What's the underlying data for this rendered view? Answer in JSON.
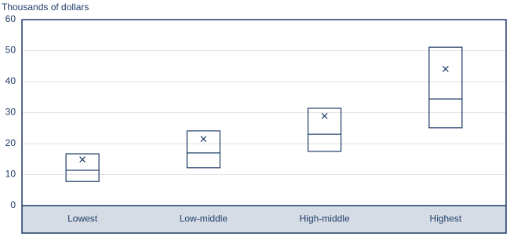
{
  "chart_data": {
    "type": "box",
    "y_label": "Thousands of dollars",
    "categories": [
      "Lowest",
      "Low-middle",
      "High-middle",
      "Highest"
    ],
    "q1": [
      7.8,
      12.2,
      17.5,
      25.1
    ],
    "median": [
      11.4,
      17.0,
      23.0,
      34.4
    ],
    "q3": [
      16.7,
      24.1,
      31.4,
      51.1
    ],
    "mean": [
      14.9,
      21.5,
      28.9,
      44.1
    ],
    "color": "#1f3d66",
    "ylim": [
      0,
      60
    ],
    "yticks": [
      0,
      10,
      20,
      30,
      40,
      50,
      60
    ],
    "grid": true
  }
}
